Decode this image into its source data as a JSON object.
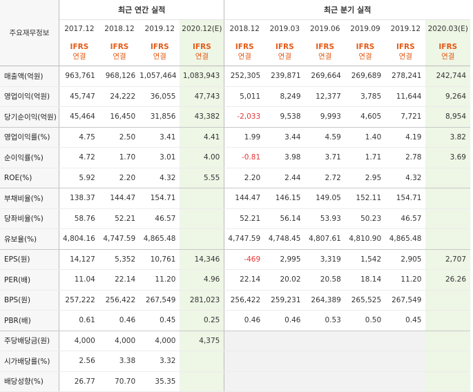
{
  "corner_label": "주요재무정보",
  "group_headers": {
    "annual": "최근 연간 실적",
    "quarterly": "최근 분기 실적"
  },
  "periods": [
    "2017.12",
    "2018.12",
    "2019.12",
    "2020.12(E)",
    "2018.12",
    "2019.03",
    "2019.06",
    "2019.09",
    "2019.12",
    "2020.03(E)"
  ],
  "basis_top": "IFRS",
  "basis_bottom": "연결",
  "rows": [
    {
      "label": "매출액(억원)",
      "values": [
        "963,761",
        "968,126",
        "1,057,464",
        "1,083,943",
        "252,305",
        "239,871",
        "269,664",
        "269,689",
        "278,241",
        "242,744"
      ]
    },
    {
      "label": "영업이익(억원)",
      "values": [
        "45,747",
        "24,222",
        "36,055",
        "47,743",
        "5,011",
        "8,249",
        "12,377",
        "3,785",
        "11,644",
        "9,264"
      ]
    },
    {
      "label": "당기순이익(억원)",
      "values": [
        "45,464",
        "16,450",
        "31,856",
        "43,382",
        "-2,033",
        "9,538",
        "9,993",
        "4,605",
        "7,721",
        "8,954"
      ]
    },
    {
      "label": "영업이익률(%)",
      "values": [
        "4.75",
        "2.50",
        "3.41",
        "4.41",
        "1.99",
        "3.44",
        "4.59",
        "1.40",
        "4.19",
        "3.82"
      ]
    },
    {
      "label": "순이익률(%)",
      "values": [
        "4.72",
        "1.70",
        "3.01",
        "4.00",
        "-0.81",
        "3.98",
        "3.71",
        "1.71",
        "2.78",
        "3.69"
      ]
    },
    {
      "label": "ROE(%)",
      "values": [
        "5.92",
        "2.20",
        "4.32",
        "5.55",
        "2.20",
        "2.44",
        "2.72",
        "2.95",
        "4.32",
        ""
      ]
    },
    {
      "label": "부채비율(%)",
      "values": [
        "138.37",
        "144.47",
        "154.71",
        "",
        "144.47",
        "146.15",
        "149.05",
        "152.11",
        "154.71",
        ""
      ]
    },
    {
      "label": "당좌비율(%)",
      "values": [
        "58.76",
        "52.21",
        "46.57",
        "",
        "52.21",
        "56.14",
        "53.93",
        "50.23",
        "46.57",
        ""
      ]
    },
    {
      "label": "유보율(%)",
      "values": [
        "4,804.16",
        "4,747.59",
        "4,865.48",
        "",
        "4,747.59",
        "4,748.45",
        "4,807.61",
        "4,810.90",
        "4,865.48",
        ""
      ]
    },
    {
      "label": "EPS(원)",
      "values": [
        "14,127",
        "5,352",
        "10,761",
        "14,346",
        "-469",
        "2,995",
        "3,319",
        "1,542",
        "2,905",
        "2,707"
      ]
    },
    {
      "label": "PER(배)",
      "values": [
        "11.04",
        "22.14",
        "11.20",
        "4.96",
        "22.14",
        "20.02",
        "20.58",
        "18.14",
        "11.20",
        "26.26"
      ]
    },
    {
      "label": "BPS(원)",
      "values": [
        "257,222",
        "256,422",
        "267,549",
        "281,023",
        "256,422",
        "259,231",
        "264,389",
        "265,525",
        "267,549",
        ""
      ]
    },
    {
      "label": "PBR(배)",
      "values": [
        "0.61",
        "0.46",
        "0.45",
        "0.25",
        "0.46",
        "0.46",
        "0.53",
        "0.50",
        "0.45",
        ""
      ]
    },
    {
      "label": "주당배당금(원)",
      "values": [
        "4,000",
        "4,000",
        "4,000",
        "4,375",
        "",
        "",
        "",
        "",
        "",
        ""
      ]
    },
    {
      "label": "시가배당률(%)",
      "values": [
        "2.56",
        "3.38",
        "3.32",
        "",
        "",
        "",
        "",
        "",
        "",
        ""
      ]
    },
    {
      "label": "배당성향(%)",
      "values": [
        "26.77",
        "70.70",
        "35.35",
        "",
        "",
        "",
        "",
        "",
        "",
        ""
      ]
    }
  ],
  "colors": {
    "ifrs": "#e35a17",
    "negative": "#e33434",
    "estimate_bg": "#eef6e6",
    "estimate_text": "#2e7a2e",
    "label_bg": "#f7f7f7",
    "empty_quarter_bg": "#f2f2f2"
  }
}
